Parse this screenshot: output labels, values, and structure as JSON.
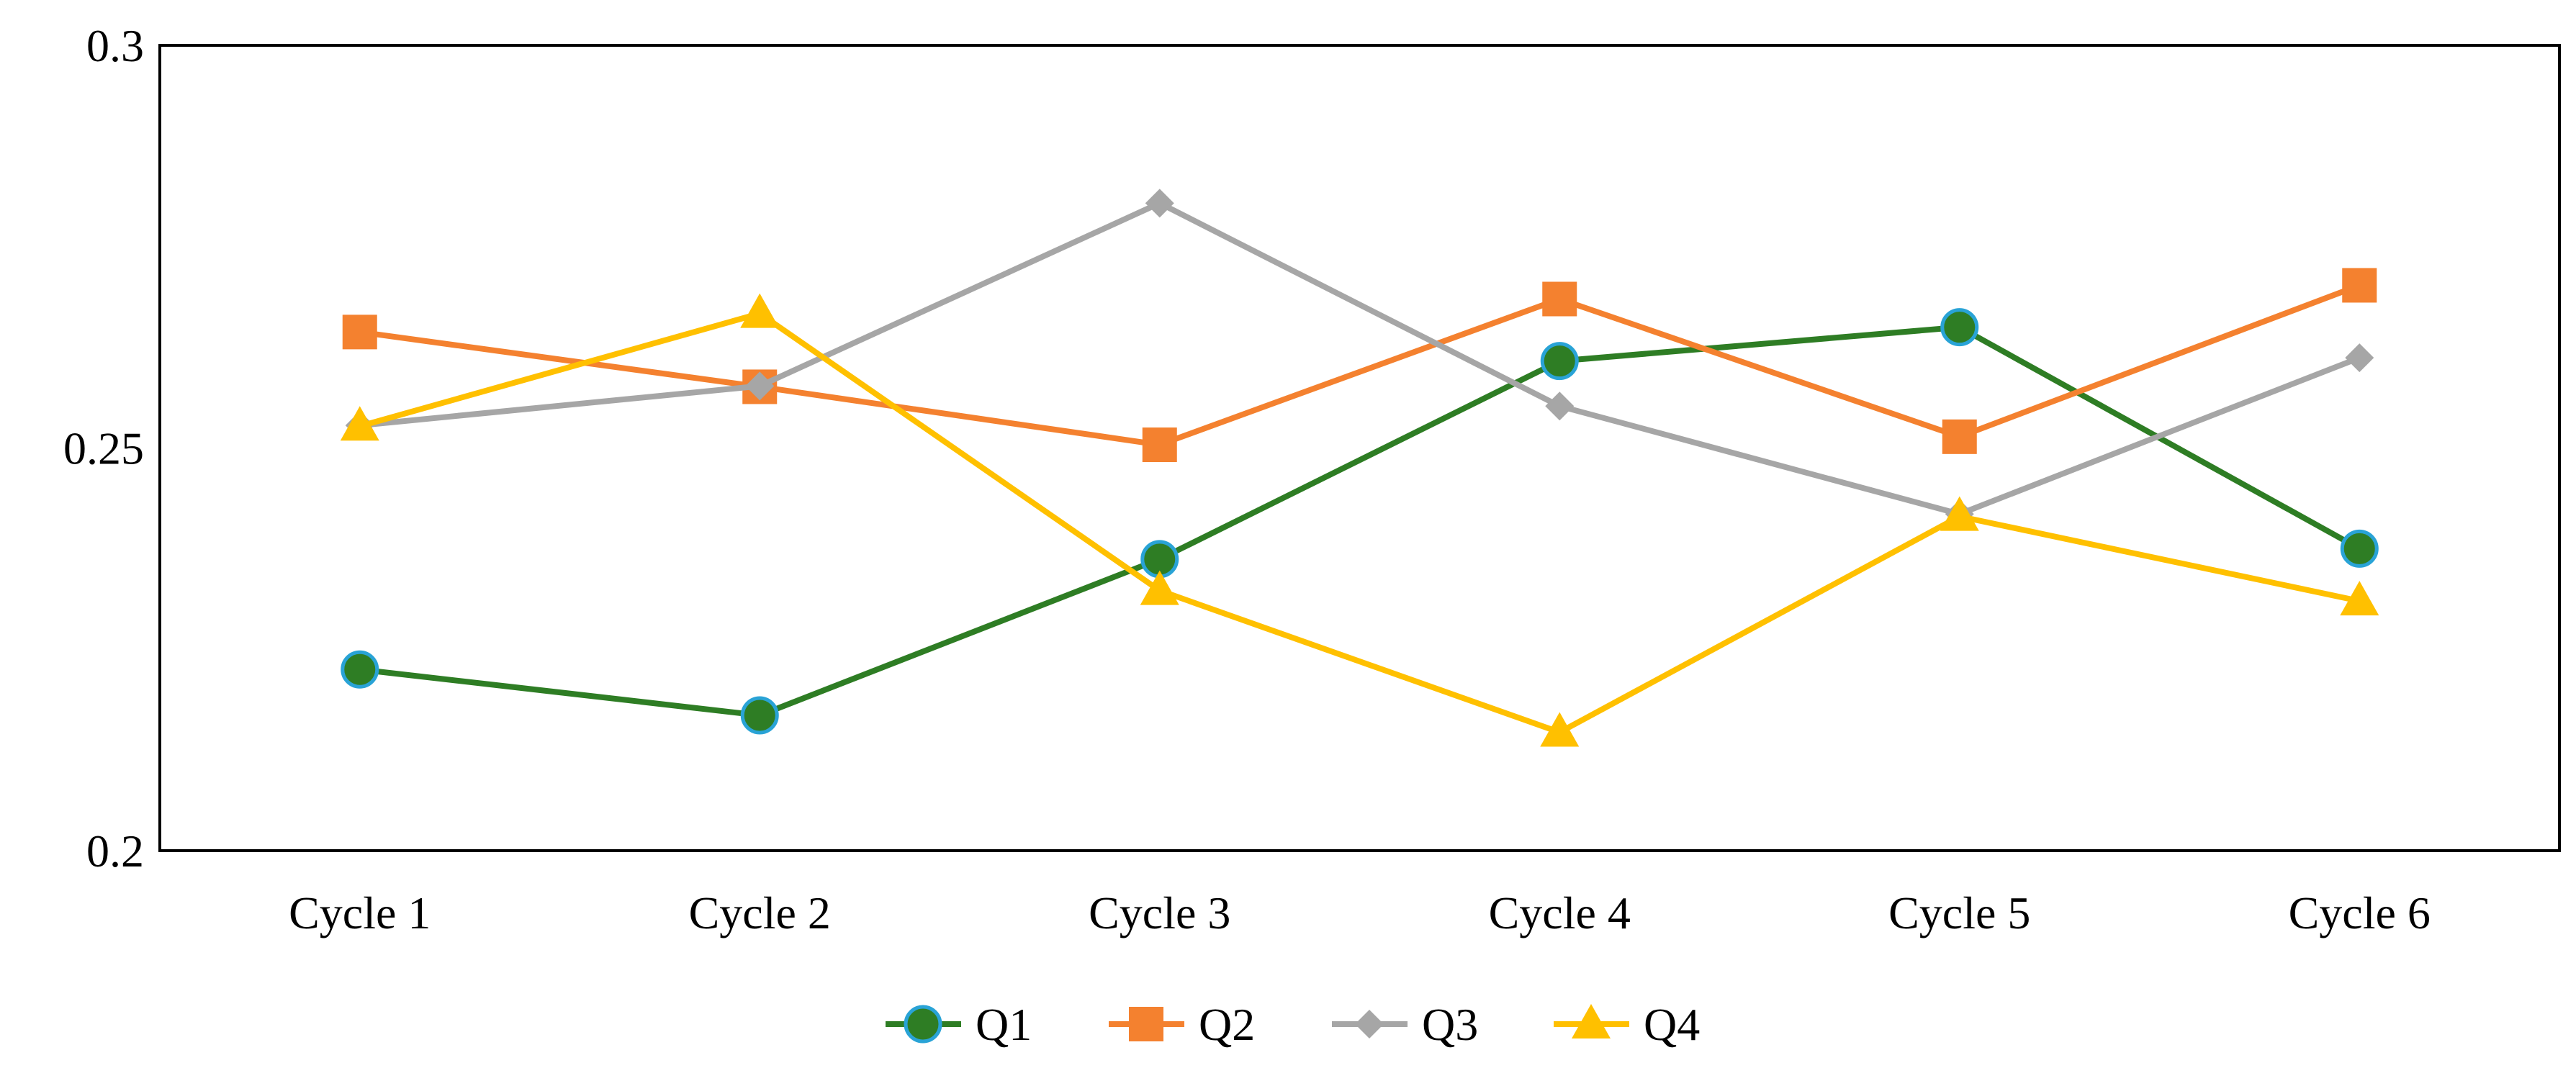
{
  "chart_data": {
    "type": "line",
    "title": "",
    "xlabel": "",
    "ylabel": "",
    "categories": [
      "Cycle 1",
      "Cycle 2",
      "Cycle 3",
      "Cycle 4",
      "Cycle 5",
      "Cycle 6"
    ],
    "ylim": [
      0.2,
      0.3
    ],
    "yticks": [
      "0.2",
      "0.25",
      "0.3"
    ],
    "grid": false,
    "legend_position": "bottom-center",
    "series": [
      {
        "name": "Q1",
        "color": "#2E7D24",
        "marker": "circle",
        "marker_edge": "#29A3D6",
        "values": [
          0.2225,
          0.2168,
          0.2362,
          0.2608,
          0.265,
          0.2375
        ]
      },
      {
        "name": "Q2",
        "color": "#F4812F",
        "marker": "square",
        "values": [
          0.2644,
          0.2576,
          0.2504,
          0.2685,
          0.2514,
          0.2702
        ]
      },
      {
        "name": "Q3",
        "color": "#A6A6A6",
        "marker": "diamond",
        "values": [
          0.2528,
          0.2577,
          0.2804,
          0.2552,
          0.2418,
          0.2612
        ]
      },
      {
        "name": "Q4",
        "color": "#FFC000",
        "marker": "triangle",
        "values": [
          0.2527,
          0.2667,
          0.2323,
          0.2147,
          0.2415,
          0.231
        ]
      }
    ]
  }
}
